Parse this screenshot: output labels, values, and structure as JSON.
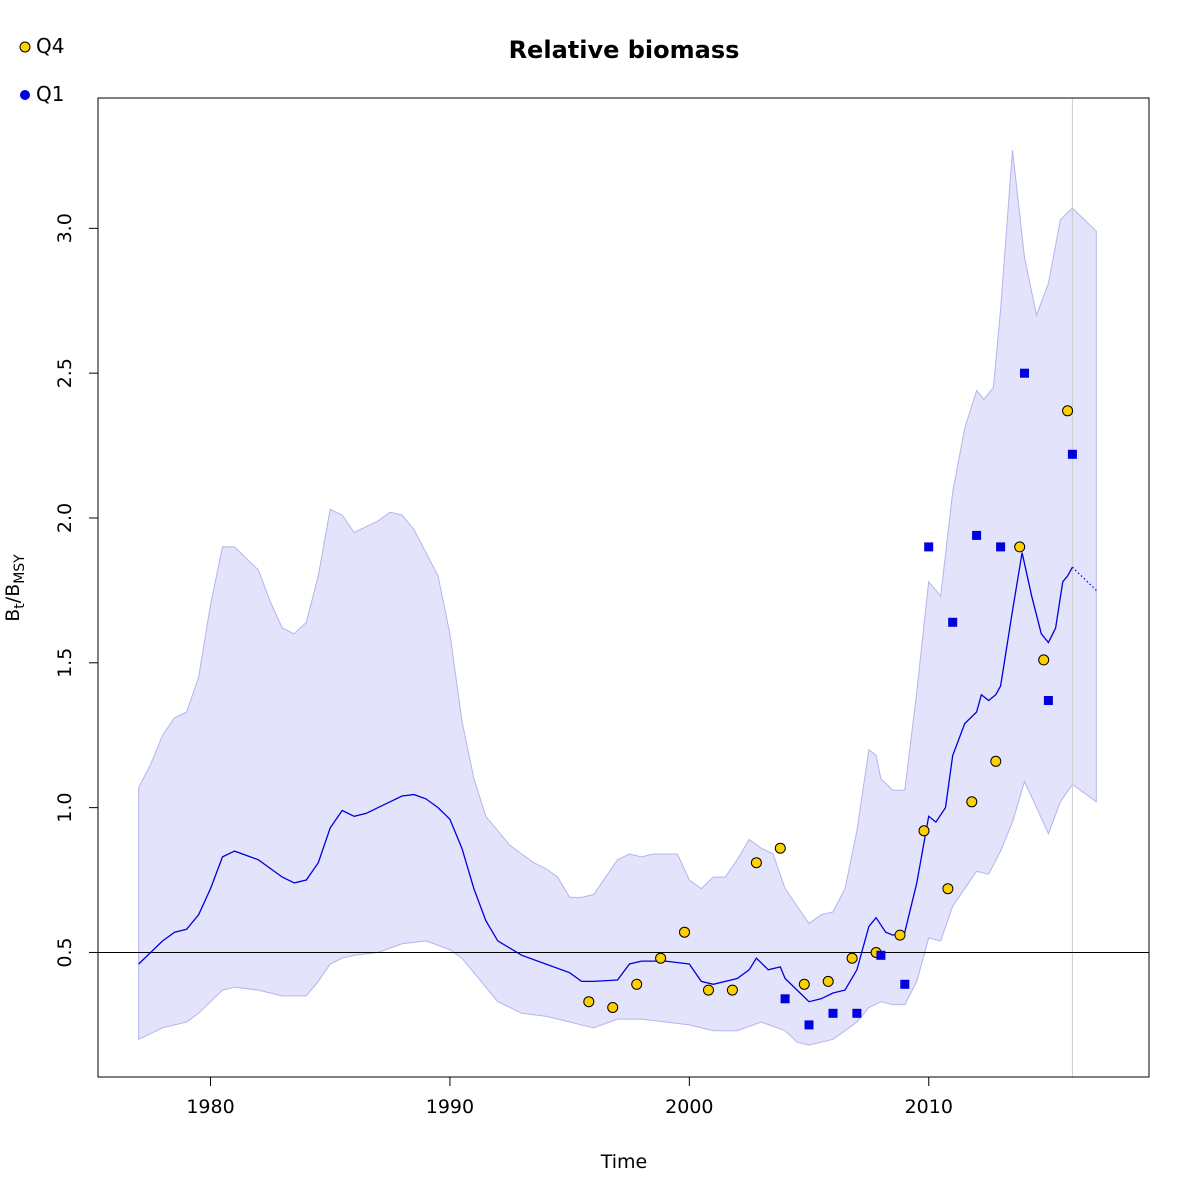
{
  "chart_data": {
    "type": "line",
    "title": "Relative biomass",
    "xlabel": "Time",
    "ylabel": {
      "base": "B",
      "sub1": "t",
      "slash": "/B",
      "sub2": "MSY"
    },
    "xlim": [
      1975.3,
      2019.2
    ],
    "ylim": [
      0.07,
      3.45
    ],
    "x_ticks": [
      1980,
      1990,
      2000,
      2010
    ],
    "y_ticks": [
      0.5,
      1.0,
      1.5,
      2.0,
      2.5,
      3.0
    ],
    "x_tick_labels": [
      "1980",
      "1990",
      "2000",
      "2010"
    ],
    "y_tick_labels": [
      "0.5",
      "1.0",
      "1.5",
      "2.0",
      "2.5",
      "3.0"
    ],
    "reference_hline": 0.5,
    "reference_vline": 2016,
    "colors": {
      "band": "#e3e3fb",
      "band_edge": "#b4b4ee",
      "line": "#0000dd",
      "q4_fill": "#ffd000",
      "q1_fill": "#0000e0",
      "vline": "#cccccc"
    },
    "legend": [
      {
        "name": "Q4",
        "marker": "circle"
      },
      {
        "name": "Q1",
        "marker": "square"
      }
    ],
    "series": [
      {
        "name": "Q4",
        "marker": "circle",
        "x": [
          1995.8,
          1996.8,
          1997.8,
          1998.8,
          1999.8,
          2000.8,
          2001.8,
          2002.8,
          2003.8,
          2004.8,
          2005.8,
          2006.8,
          2007.8,
          2008.8,
          2009.8,
          2010.8,
          2011.8,
          2012.8,
          2013.8,
          2014.8,
          2015.8
        ],
        "y": [
          0.33,
          0.31,
          0.39,
          0.48,
          0.57,
          0.37,
          0.37,
          0.81,
          0.86,
          0.39,
          0.4,
          0.48,
          0.5,
          0.56,
          0.92,
          0.72,
          1.02,
          1.16,
          1.9,
          1.51,
          2.37
        ]
      },
      {
        "name": "Q1",
        "marker": "square",
        "x": [
          2004,
          2005,
          2006,
          2007,
          2008,
          2009,
          2010,
          2011,
          2012,
          2013,
          2014,
          2015,
          2016
        ],
        "y": [
          0.34,
          0.25,
          0.29,
          0.29,
          0.49,
          0.39,
          1.9,
          1.64,
          1.94,
          1.9,
          2.5,
          1.37,
          2.22
        ]
      }
    ],
    "estimate": {
      "x": [
        1977,
        1978,
        1978.5,
        1979,
        1979.5,
        1980,
        1980.5,
        1981,
        1982,
        1983,
        1983.5,
        1984,
        1984.5,
        1985,
        1985.5,
        1986,
        1986.5,
        1987,
        1987.5,
        1988,
        1988.5,
        1989,
        1989.5,
        1990,
        1990.5,
        1991,
        1991.5,
        1992,
        1993,
        1994,
        1995,
        1995.5,
        1996,
        1997,
        1997.5,
        1998,
        1999,
        2000,
        2000.5,
        2001,
        2002,
        2002.5,
        2002.8,
        2003.3,
        2003.8,
        2004,
        2004.5,
        2005,
        2005.5,
        2006,
        2006.5,
        2007,
        2007.5,
        2007.8,
        2008.2,
        2008.5,
        2009,
        2009.5,
        2010,
        2010.3,
        2010.7,
        2011,
        2011.5,
        2012,
        2012.2,
        2012.5,
        2012.8,
        2013,
        2013.5,
        2013.9,
        2014.3,
        2014.7,
        2015,
        2015.3,
        2015.6,
        2015.8,
        2016
      ],
      "y": [
        0.46,
        0.54,
        0.57,
        0.58,
        0.63,
        0.72,
        0.83,
        0.85,
        0.82,
        0.76,
        0.74,
        0.75,
        0.81,
        0.93,
        0.99,
        0.97,
        0.98,
        1.0,
        1.02,
        1.04,
        1.045,
        1.03,
        1.0,
        0.96,
        0.86,
        0.72,
        0.61,
        0.54,
        0.49,
        0.46,
        0.43,
        0.4,
        0.4,
        0.405,
        0.46,
        0.47,
        0.47,
        0.46,
        0.4,
        0.39,
        0.41,
        0.44,
        0.48,
        0.44,
        0.45,
        0.41,
        0.37,
        0.33,
        0.34,
        0.36,
        0.37,
        0.44,
        0.59,
        0.62,
        0.57,
        0.56,
        0.57,
        0.74,
        0.97,
        0.95,
        1.0,
        1.18,
        1.29,
        1.33,
        1.39,
        1.37,
        1.39,
        1.42,
        1.68,
        1.88,
        1.73,
        1.6,
        1.57,
        1.62,
        1.78,
        1.8,
        1.83
      ]
    },
    "forecast": {
      "x": [
        2016,
        2016.5,
        2017
      ],
      "y": [
        1.83,
        1.79,
        1.75
      ]
    },
    "ci_upper": {
      "x": [
        1977,
        1977.5,
        1978,
        1978.5,
        1979,
        1979.5,
        1980,
        1980.5,
        1981,
        1982,
        1982.5,
        1983,
        1983.5,
        1984,
        1984.5,
        1985,
        1985.5,
        1986,
        1986.5,
        1987,
        1987.5,
        1988,
        1988.5,
        1989,
        1989.5,
        1990,
        1990.5,
        1991,
        1991.5,
        1992,
        1992.5,
        1993,
        1993.5,
        1994,
        1994.5,
        1995,
        1995.5,
        1996,
        1997,
        1997.5,
        1998,
        1998.5,
        1999,
        1999.5,
        2000,
        2000.5,
        2001,
        2001.5,
        2002,
        2002.5,
        2003,
        2003.5,
        2004,
        2004.5,
        2005,
        2005.5,
        2006,
        2006.5,
        2007,
        2007.5,
        2007.8,
        2008,
        2008.5,
        2009,
        2009.5,
        2010,
        2010.5,
        2011,
        2011.5,
        2012,
        2012.3,
        2012.7,
        2013,
        2013.5,
        2014,
        2014.5,
        2015,
        2015.5,
        2016,
        2016.5,
        2017
      ],
      "y": [
        1.07,
        1.15,
        1.25,
        1.31,
        1.33,
        1.45,
        1.7,
        1.9,
        1.9,
        1.82,
        1.71,
        1.62,
        1.6,
        1.64,
        1.8,
        2.03,
        2.01,
        1.95,
        1.97,
        1.99,
        2.02,
        2.01,
        1.96,
        1.88,
        1.8,
        1.6,
        1.3,
        1.1,
        0.97,
        0.92,
        0.87,
        0.84,
        0.81,
        0.79,
        0.76,
        0.69,
        0.69,
        0.7,
        0.82,
        0.84,
        0.83,
        0.84,
        0.84,
        0.84,
        0.75,
        0.72,
        0.76,
        0.76,
        0.82,
        0.89,
        0.86,
        0.84,
        0.72,
        0.66,
        0.6,
        0.63,
        0.64,
        0.72,
        0.92,
        1.2,
        1.18,
        1.1,
        1.06,
        1.06,
        1.4,
        1.78,
        1.73,
        2.09,
        2.31,
        2.44,
        2.41,
        2.45,
        2.72,
        3.27,
        2.9,
        2.7,
        2.81,
        3.03,
        3.07,
        3.03,
        2.99
      ]
    },
    "ci_lower": {
      "x": [
        1977,
        1978,
        1979,
        1979.5,
        1980,
        1980.5,
        1981,
        1982,
        1983,
        1984,
        1984.5,
        1985,
        1985.5,
        1986,
        1987,
        1988,
        1989,
        1990,
        1990.5,
        1991,
        1991.5,
        1992,
        1993,
        1994,
        1995,
        1996,
        1997,
        1998,
        1999,
        2000,
        2001,
        2002,
        2003,
        2004,
        2004.5,
        2005,
        2005.5,
        2006,
        2006.5,
        2007,
        2007.5,
        2008,
        2008.5,
        2009,
        2009.5,
        2010,
        2010.5,
        2011,
        2011.5,
        2012,
        2012.5,
        2013,
        2013.5,
        2014,
        2014.5,
        2015,
        2015.5,
        2016,
        2016.5,
        2017
      ],
      "y": [
        0.2,
        0.24,
        0.26,
        0.29,
        0.33,
        0.37,
        0.38,
        0.37,
        0.35,
        0.35,
        0.4,
        0.46,
        0.48,
        0.49,
        0.5,
        0.53,
        0.54,
        0.51,
        0.48,
        0.43,
        0.38,
        0.33,
        0.29,
        0.28,
        0.26,
        0.24,
        0.27,
        0.27,
        0.26,
        0.25,
        0.23,
        0.23,
        0.26,
        0.23,
        0.19,
        0.18,
        0.19,
        0.2,
        0.23,
        0.26,
        0.31,
        0.33,
        0.32,
        0.32,
        0.4,
        0.55,
        0.54,
        0.66,
        0.72,
        0.78,
        0.77,
        0.85,
        0.95,
        1.09,
        1.0,
        0.91,
        1.02,
        1.08,
        1.05,
        1.02
      ]
    }
  }
}
